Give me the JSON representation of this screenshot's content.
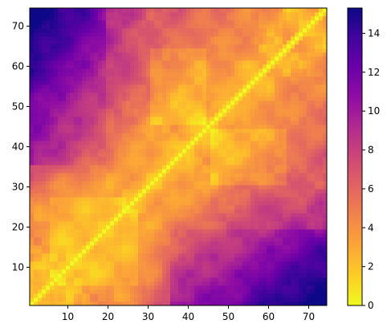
{
  "chart_data": {
    "type": "heatmap",
    "title": "",
    "xlabel": "",
    "ylabel": "",
    "n": 74,
    "x_range": [
      1,
      74
    ],
    "y_range": [
      1,
      74
    ],
    "x_ticks": [
      10,
      20,
      30,
      40,
      50,
      60,
      70
    ],
    "x_tick_labels": [
      "10",
      "20",
      "30",
      "40",
      "50",
      "60",
      "70"
    ],
    "y_ticks": [
      10,
      20,
      30,
      40,
      50,
      60,
      70
    ],
    "y_tick_labels": [
      "10",
      "20",
      "30",
      "40",
      "50",
      "60",
      "70"
    ],
    "colormap": "plasma_r",
    "value_range": [
      0,
      15.3
    ],
    "colorbar": {
      "ticks": [
        0,
        2,
        4,
        6,
        8,
        10,
        12,
        14
      ],
      "tick_labels": [
        "0",
        "2",
        "4",
        "6",
        "8",
        "10",
        "12",
        "14"
      ],
      "placement": "right"
    },
    "symmetric": true,
    "diagonal_value": 0,
    "grid": false,
    "description_values": {
      "region_low_index_far_pairs": [
        [
          1,
          74,
          15.3
        ],
        [
          5,
          70,
          14.0
        ],
        [
          10,
          65,
          12.5
        ],
        [
          10,
          20,
          2.5
        ],
        [
          15,
          25,
          3.5
        ],
        [
          30,
          40,
          3.0
        ],
        [
          45,
          55,
          3.5
        ],
        [
          5,
          45,
          10.5
        ],
        [
          15,
          45,
          8.5
        ],
        [
          20,
          60,
          9.0
        ],
        [
          35,
          65,
          5.5
        ],
        [
          50,
          70,
          5.0
        ]
      ]
    }
  }
}
